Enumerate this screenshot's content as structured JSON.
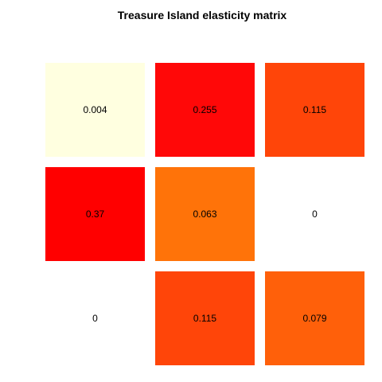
{
  "chart_data": {
    "type": "heatmap",
    "title": "Treasure Island elasticity matrix",
    "rows": 3,
    "cols": 3,
    "values": [
      [
        0.004,
        0.255,
        0.115
      ],
      [
        0.37,
        0.063,
        0
      ],
      [
        0,
        0.115,
        0.079
      ]
    ],
    "labels": [
      [
        "0.004",
        "0.255",
        "0.115"
      ],
      [
        "0.37",
        "0.063",
        "0"
      ],
      [
        "0",
        "0.115",
        "0.079"
      ]
    ],
    "colors": [
      [
        "#FFFFE0",
        "#FF0808",
        "#FF4509"
      ],
      [
        "#FF0000",
        "#FF7309",
        null
      ],
      [
        null,
        "#FF4509",
        "#FF600A"
      ]
    ],
    "zero_cell_color": "#FFFFFF",
    "grid": false,
    "legend": "none"
  }
}
